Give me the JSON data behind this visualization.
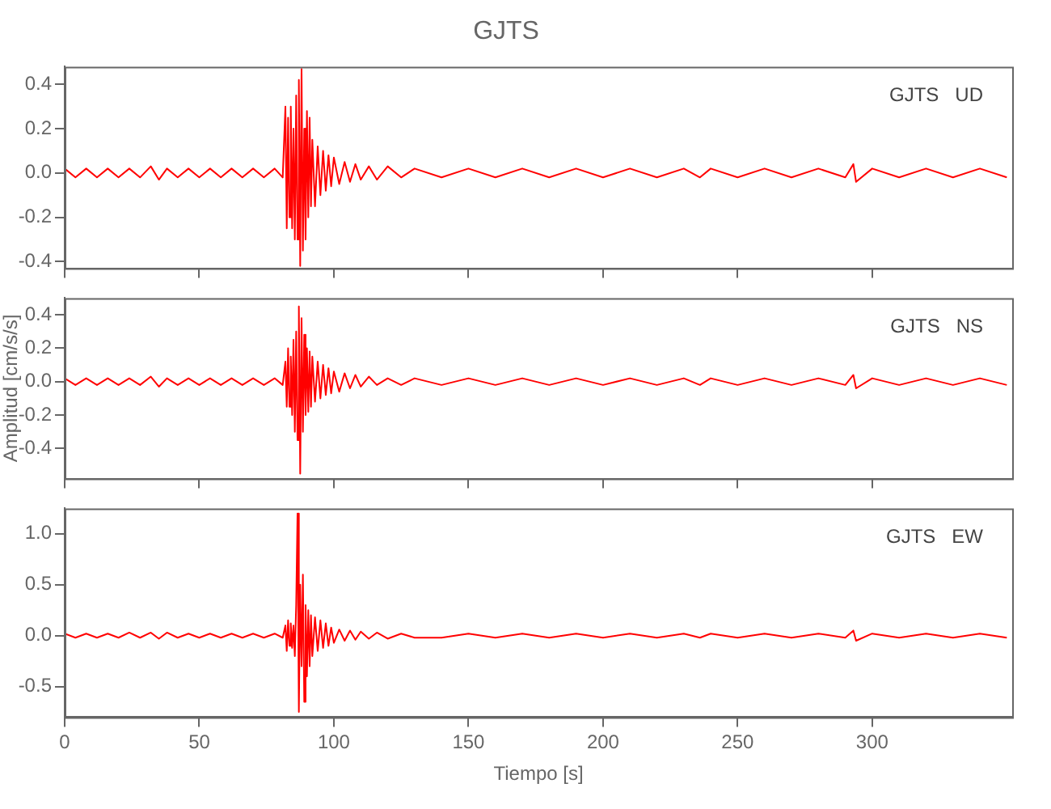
{
  "chart_data": [
    {
      "type": "line",
      "title": "GJTS",
      "tick_labels": "y",
      "annotations": [
        "GJTS   UD"
      ],
      "x": [
        0,
        4,
        8,
        12,
        16,
        20,
        24,
        28,
        32,
        35,
        38,
        42,
        46,
        50,
        54,
        58,
        62,
        66,
        70,
        74,
        78,
        81,
        82,
        82.5,
        83,
        83.5,
        84,
        84.5,
        85,
        85.5,
        86,
        86.5,
        87,
        87.5,
        88,
        88.5,
        89,
        89.5,
        90,
        90.5,
        91,
        91.5,
        92,
        93,
        94,
        95,
        96,
        97,
        98,
        99,
        100,
        102,
        104,
        106,
        108,
        110,
        113,
        116,
        120,
        125,
        130,
        140,
        150,
        160,
        170,
        180,
        190,
        200,
        210,
        220,
        230,
        236,
        240,
        250,
        260,
        270,
        280,
        290,
        293,
        294,
        300,
        310,
        320,
        330,
        340,
        350
      ],
      "series": [
        {
          "color": "#ff0000",
          "values": [
            0.02,
            -0.02,
            0.02,
            -0.02,
            0.02,
            -0.02,
            0.02,
            -0.02,
            0.03,
            -0.03,
            0.02,
            -0.02,
            0.02,
            -0.02,
            0.02,
            -0.02,
            0.02,
            -0.02,
            0.02,
            -0.02,
            0.02,
            -0.02,
            0.3,
            -0.25,
            0.25,
            -0.2,
            0.3,
            -0.25,
            0.2,
            -0.3,
            0.35,
            -0.3,
            0.42,
            -0.42,
            0.47,
            -0.35,
            0.2,
            -0.3,
            0.28,
            -0.2,
            0.25,
            -0.15,
            0.15,
            -0.15,
            0.12,
            -0.1,
            0.1,
            -0.08,
            0.08,
            -0.06,
            0.07,
            -0.05,
            0.05,
            -0.04,
            0.04,
            -0.03,
            0.03,
            -0.03,
            0.03,
            -0.02,
            0.02,
            -0.02,
            0.02,
            -0.02,
            0.02,
            -0.02,
            0.02,
            -0.02,
            0.02,
            -0.02,
            0.02,
            -0.02,
            0.02,
            -0.02,
            0.02,
            -0.02,
            0.02,
            -0.02,
            0.04,
            -0.04,
            0.02,
            -0.02,
            0.02,
            -0.02,
            0.02,
            -0.02
          ]
        }
      ],
      "xlim": [
        0,
        352
      ],
      "xticks": [
        0,
        50,
        100,
        150,
        200,
        250,
        300
      ],
      "ylim": [
        -0.43,
        0.48
      ],
      "yticks": [
        {
          "value": -0.4,
          "label": "-0.4"
        },
        {
          "value": -0.2,
          "label": "-0.2"
        },
        {
          "value": 0,
          "label": "0.0"
        },
        {
          "value": 0.2,
          "label": "0.2"
        },
        {
          "value": 0.4,
          "label": "0.4"
        }
      ]
    },
    {
      "type": "line",
      "ylabel": "Amplitud [cm/s/s]",
      "tick_labels": "y",
      "annotations": [
        "GJTS   NS"
      ],
      "x": [
        0,
        4,
        8,
        12,
        16,
        20,
        24,
        28,
        32,
        35,
        38,
        42,
        46,
        50,
        54,
        58,
        62,
        66,
        70,
        74,
        78,
        81,
        82,
        82.5,
        83,
        83.5,
        84,
        84.5,
        85,
        85.5,
        86,
        86.5,
        87,
        87.5,
        88,
        88.5,
        89,
        89.5,
        90,
        90.5,
        91,
        91.5,
        92,
        93,
        94,
        95,
        96,
        97,
        98,
        99,
        100,
        102,
        104,
        106,
        108,
        110,
        113,
        116,
        120,
        125,
        130,
        140,
        150,
        160,
        170,
        180,
        190,
        200,
        210,
        220,
        230,
        236,
        240,
        250,
        260,
        270,
        280,
        290,
        293,
        294,
        300,
        310,
        320,
        330,
        340,
        350
      ],
      "series": [
        {
          "color": "#ff0000",
          "values": [
            0.02,
            -0.02,
            0.02,
            -0.02,
            0.02,
            -0.02,
            0.02,
            -0.02,
            0.03,
            -0.03,
            0.02,
            -0.02,
            0.02,
            -0.02,
            0.02,
            -0.02,
            0.02,
            -0.02,
            0.02,
            -0.02,
            0.02,
            -0.02,
            0.12,
            -0.15,
            0.2,
            -0.15,
            0.15,
            -0.2,
            0.25,
            -0.3,
            0.3,
            -0.35,
            0.45,
            -0.55,
            0.38,
            -0.3,
            0.28,
            -0.2,
            0.2,
            -0.18,
            0.18,
            -0.15,
            0.15,
            -0.12,
            0.12,
            -0.1,
            0.1,
            -0.08,
            0.08,
            -0.07,
            0.06,
            -0.06,
            0.05,
            -0.04,
            0.04,
            -0.03,
            0.03,
            -0.02,
            0.02,
            -0.02,
            0.02,
            -0.02,
            0.02,
            -0.02,
            0.02,
            -0.02,
            0.02,
            -0.02,
            0.02,
            -0.02,
            0.02,
            -0.02,
            0.02,
            -0.02,
            0.02,
            -0.02,
            0.02,
            -0.02,
            0.04,
            -0.04,
            0.02,
            -0.02,
            0.02,
            -0.02,
            0.02,
            -0.02
          ]
        }
      ],
      "xlim": [
        0,
        352
      ],
      "xticks": [
        0,
        50,
        100,
        150,
        200,
        250,
        300
      ],
      "ylim": [
        -0.58,
        0.5
      ],
      "yticks": [
        {
          "value": -0.4,
          "label": "-0.4"
        },
        {
          "value": -0.2,
          "label": "-0.2"
        },
        {
          "value": 0,
          "label": "0.0"
        },
        {
          "value": 0.2,
          "label": "0.2"
        },
        {
          "value": 0.4,
          "label": "0.4"
        }
      ]
    },
    {
      "type": "line",
      "xlabel": "Tiempo [s]",
      "annotations": [
        "GJTS   EW"
      ],
      "x": [
        0,
        4,
        8,
        12,
        16,
        20,
        24,
        28,
        32,
        35,
        38,
        42,
        46,
        50,
        54,
        58,
        62,
        66,
        70,
        74,
        78,
        81,
        82,
        82.5,
        83,
        83.5,
        84,
        84.5,
        85,
        85.5,
        86,
        86.5,
        87,
        87.5,
        88,
        88.5,
        89,
        89.5,
        90,
        90.5,
        91,
        91.5,
        92,
        93,
        94,
        95,
        96,
        97,
        98,
        99,
        100,
        102,
        104,
        106,
        108,
        110,
        113,
        116,
        120,
        125,
        130,
        140,
        150,
        160,
        170,
        180,
        190,
        200,
        210,
        220,
        230,
        236,
        240,
        250,
        260,
        270,
        280,
        290,
        293,
        294,
        300,
        310,
        320,
        330,
        340,
        350
      ],
      "series": [
        {
          "color": "#ff0000",
          "values": [
            0.02,
            -0.02,
            0.02,
            -0.02,
            0.02,
            -0.02,
            0.03,
            -0.02,
            0.03,
            -0.03,
            0.03,
            -0.02,
            0.02,
            -0.02,
            0.02,
            -0.02,
            0.02,
            -0.02,
            0.02,
            -0.02,
            0.02,
            -0.02,
            0.1,
            -0.15,
            0.15,
            -0.1,
            0.12,
            -0.12,
            0.1,
            -0.2,
            0.3,
            1.2,
            -0.75,
            0.5,
            -0.3,
            0.6,
            -0.65,
            0.3,
            -0.4,
            0.25,
            -0.3,
            0.2,
            -0.2,
            0.18,
            -0.15,
            0.15,
            -0.12,
            0.12,
            -0.1,
            0.08,
            -0.07,
            0.06,
            -0.05,
            0.05,
            -0.04,
            0.04,
            -0.03,
            0.03,
            -0.03,
            0.02,
            -0.02,
            -0.02,
            0.02,
            -0.02,
            0.02,
            -0.02,
            0.02,
            -0.02,
            0.02,
            -0.02,
            0.02,
            -0.02,
            0.02,
            -0.02,
            0.02,
            -0.02,
            0.02,
            -0.02,
            0.05,
            -0.05,
            0.02,
            -0.02,
            0.02,
            -0.02,
            0.02,
            -0.02
          ]
        }
      ],
      "xlim": [
        0,
        352
      ],
      "xticks": [
        0,
        50,
        100,
        150,
        200,
        250,
        300
      ],
      "ylim": [
        -0.8,
        1.25
      ],
      "yticks": [
        {
          "value": -0.5,
          "label": "-0.5"
        },
        {
          "value": 0,
          "label": "0.0"
        },
        {
          "value": 0.5,
          "label": "0.5"
        },
        {
          "value": 1,
          "label": "1.0"
        }
      ]
    }
  ]
}
